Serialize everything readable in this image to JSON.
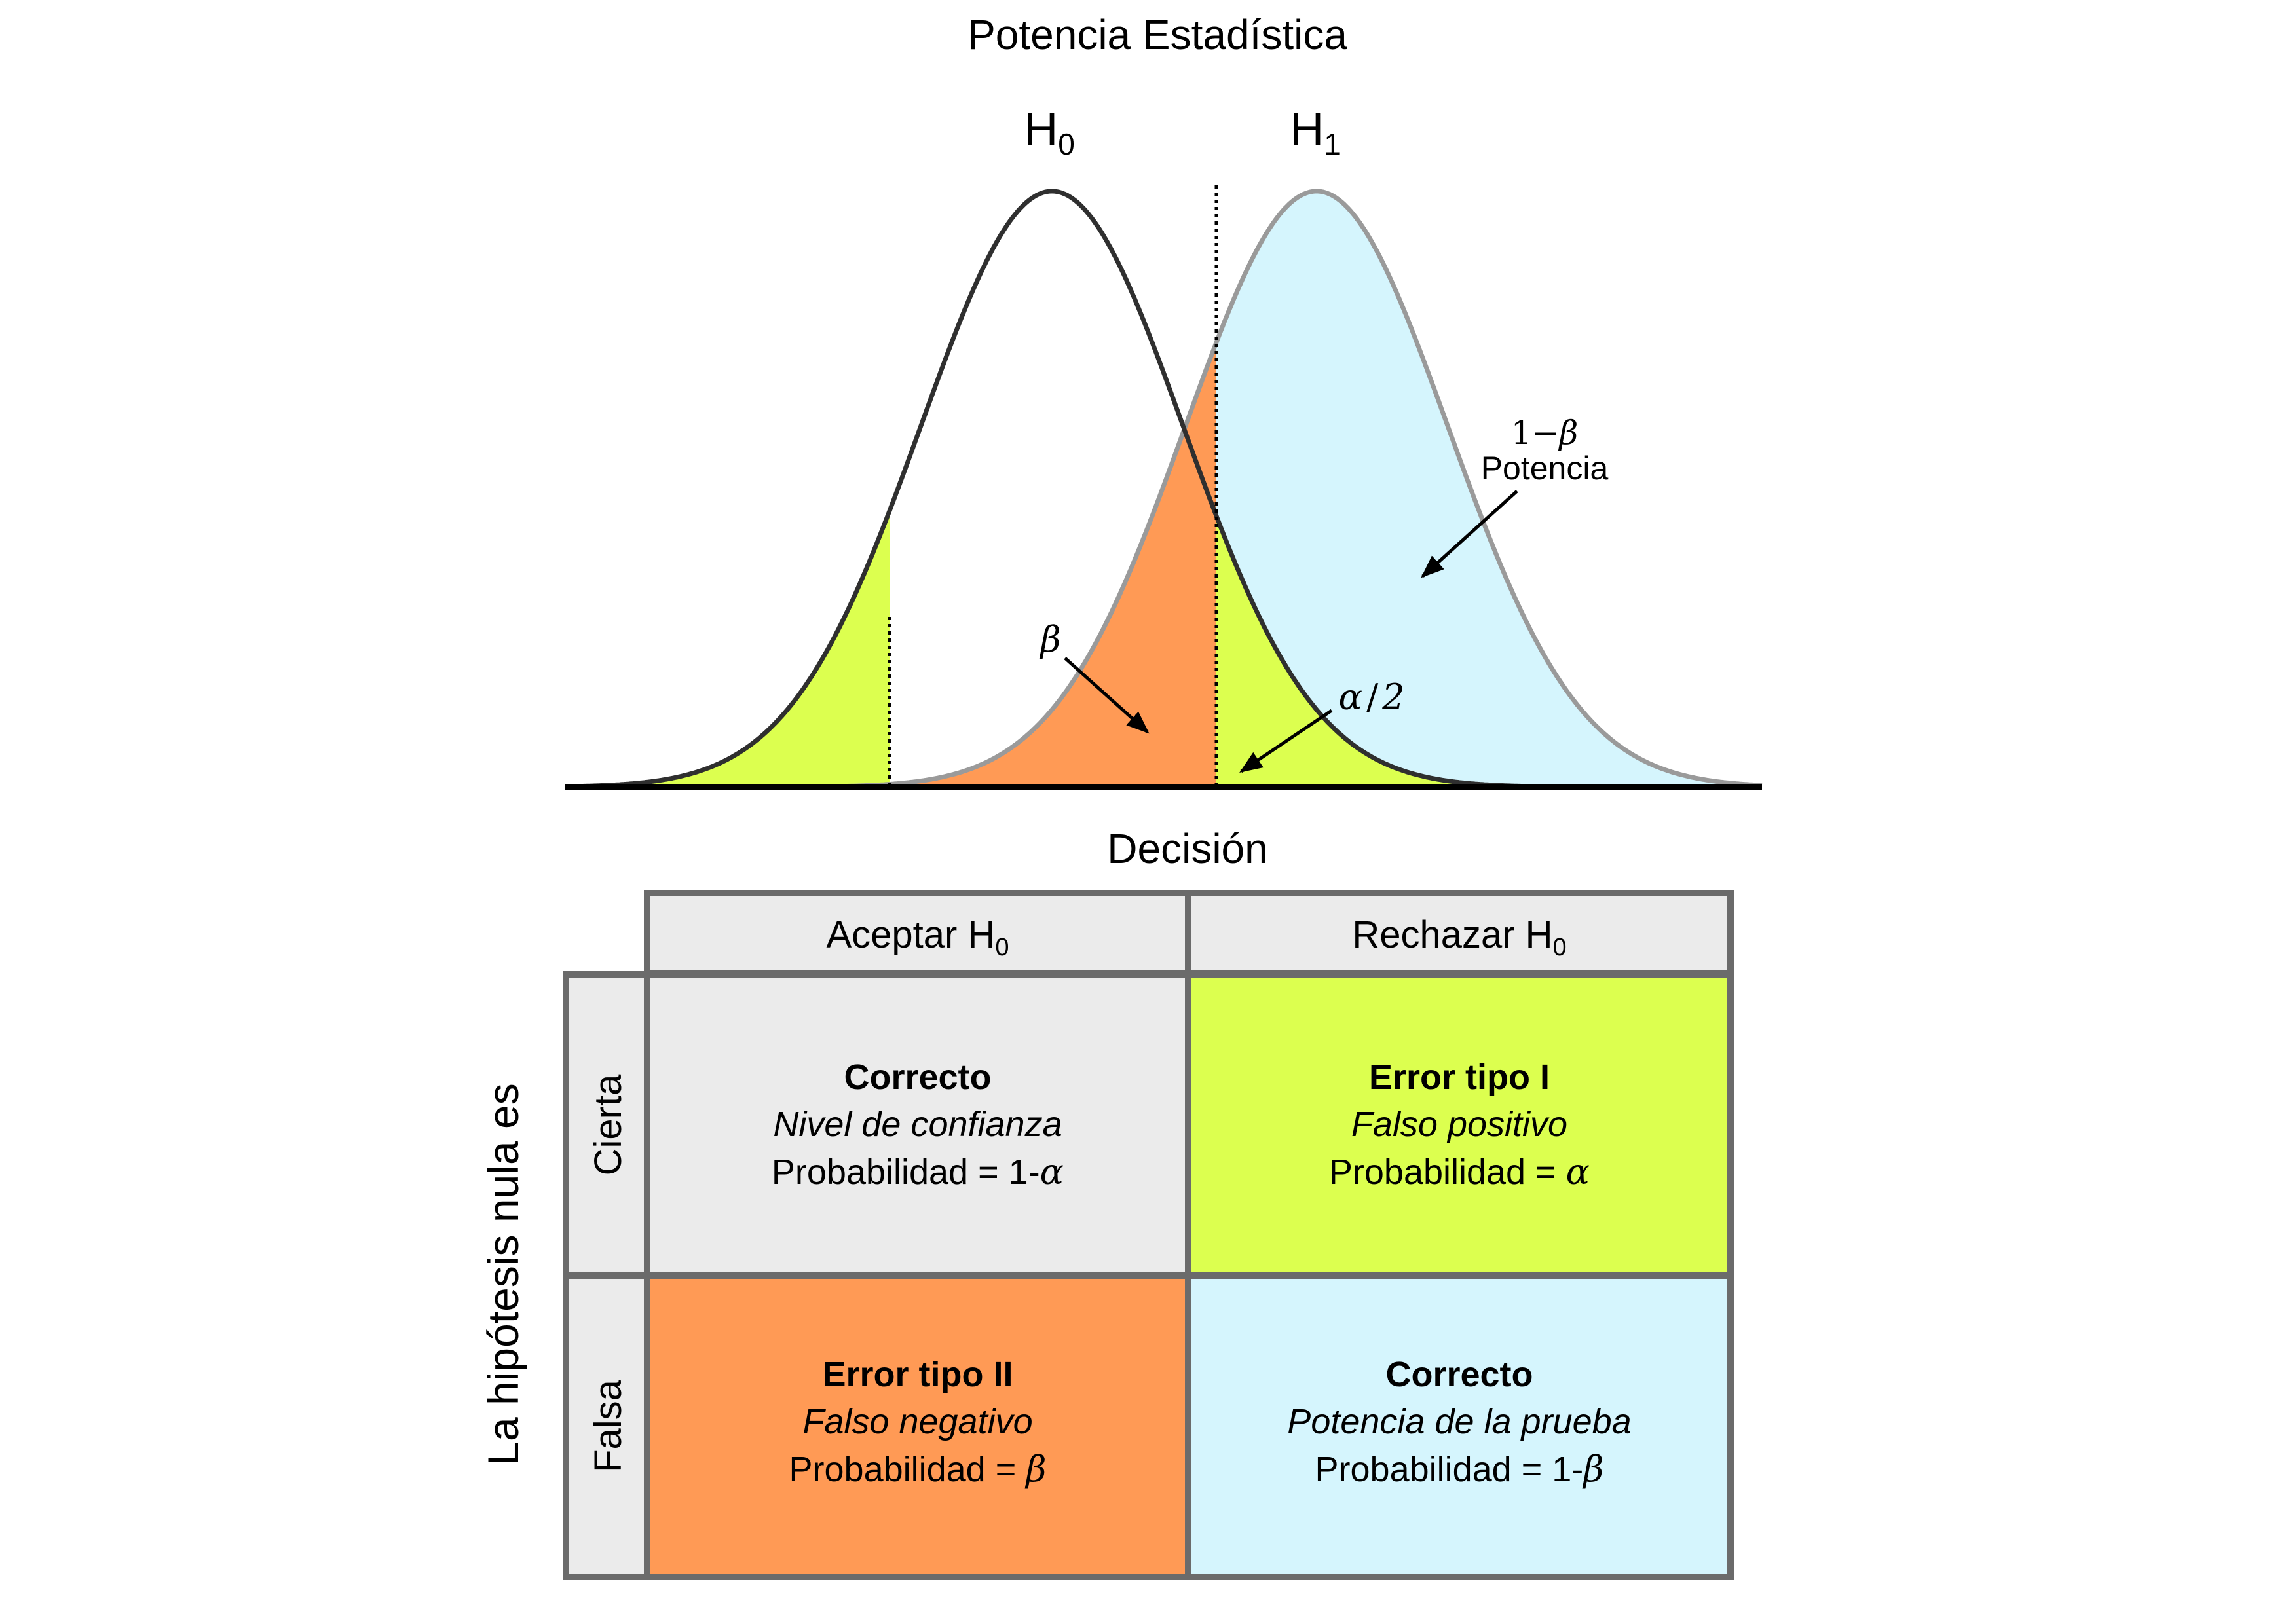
{
  "title": "Potencia Estadística",
  "hypotheses": {
    "h0": {
      "letter": "H",
      "sub": "0"
    },
    "h1": {
      "letter": "H",
      "sub": "1"
    }
  },
  "annotations": {
    "power_symbol_one": "1",
    "power_symbol_minus": "−",
    "power_symbol_beta": "β",
    "power_label": "Potencia",
    "beta_symbol": "β",
    "alpha_half_symbol": "α",
    "alpha_half_slash": "/",
    "alpha_half_two": "2"
  },
  "table": {
    "decision_header": "Decisión",
    "row_header": "La hipótesis nula es",
    "columns": [
      {
        "text": "Aceptar H",
        "sub": "0"
      },
      {
        "text": "Rechazar H",
        "sub": "0"
      }
    ],
    "rows": [
      "Cierta",
      "Falsa"
    ],
    "cells": {
      "true_accept": {
        "title": "Correcto",
        "subtitle": "Nivel de confianza",
        "prob_text": "Probabilidad = 1-",
        "prob_symbol": "α"
      },
      "true_reject": {
        "title": "Error tipo I",
        "subtitle": "Falso positivo",
        "prob_text": "Probabilidad = ",
        "prob_symbol": "α"
      },
      "false_accept": {
        "title": "Error tipo II",
        "subtitle": "Falso negativo",
        "prob_text": "Probabilidad = ",
        "prob_symbol": "β"
      },
      "false_reject": {
        "title": "Correcto",
        "subtitle": "Potencia de la prueba",
        "prob_text": "Probabilidad = 1-",
        "prob_symbol": "β"
      }
    }
  },
  "colors": {
    "alpha_region": "#dcff4f",
    "beta_region": "#ff9a55",
    "power_region": "#d5f5fd",
    "header_gray": "#ebebeb",
    "border_gray": "#6b6b6b",
    "h0_curve": "#2f2f2f",
    "h1_curve": "#9a9a9a"
  }
}
